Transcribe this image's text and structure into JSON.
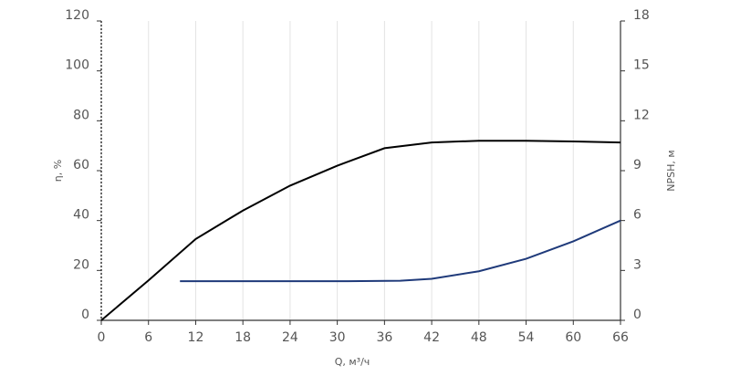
{
  "chart_data": {
    "type": "line",
    "x_label": "Q, м³/ч",
    "y_label": "η, %",
    "y2_label": "NPSH, м",
    "xlim": [
      0,
      66
    ],
    "xticks": [
      0,
      6,
      12,
      18,
      24,
      30,
      36,
      42,
      48,
      54,
      60,
      66
    ],
    "ylim": [
      0,
      120
    ],
    "yticks": [
      0,
      20,
      40,
      60,
      80,
      100,
      120
    ],
    "y2lim": [
      0,
      18
    ],
    "y2ticks": [
      0,
      3,
      6,
      9,
      12,
      15,
      18
    ],
    "grid": true,
    "series": [
      {
        "name": "η",
        "color": "#000000",
        "axis": "y",
        "x": [
          0,
          6,
          12,
          18,
          24,
          30,
          36,
          42,
          48,
          54,
          60,
          66
        ],
        "values": [
          0,
          16,
          32.6,
          44,
          54,
          62,
          69,
          71.3,
          72,
          72,
          71.7,
          71.3
        ]
      },
      {
        "name": "NPSH",
        "color": "#1f3a7a",
        "axis": "y2",
        "x": [
          10,
          20,
          30,
          38,
          42,
          48,
          54,
          60,
          66
        ],
        "values": [
          2.35,
          2.35,
          2.35,
          2.38,
          2.5,
          2.95,
          3.7,
          4.75,
          6.0
        ]
      }
    ]
  }
}
